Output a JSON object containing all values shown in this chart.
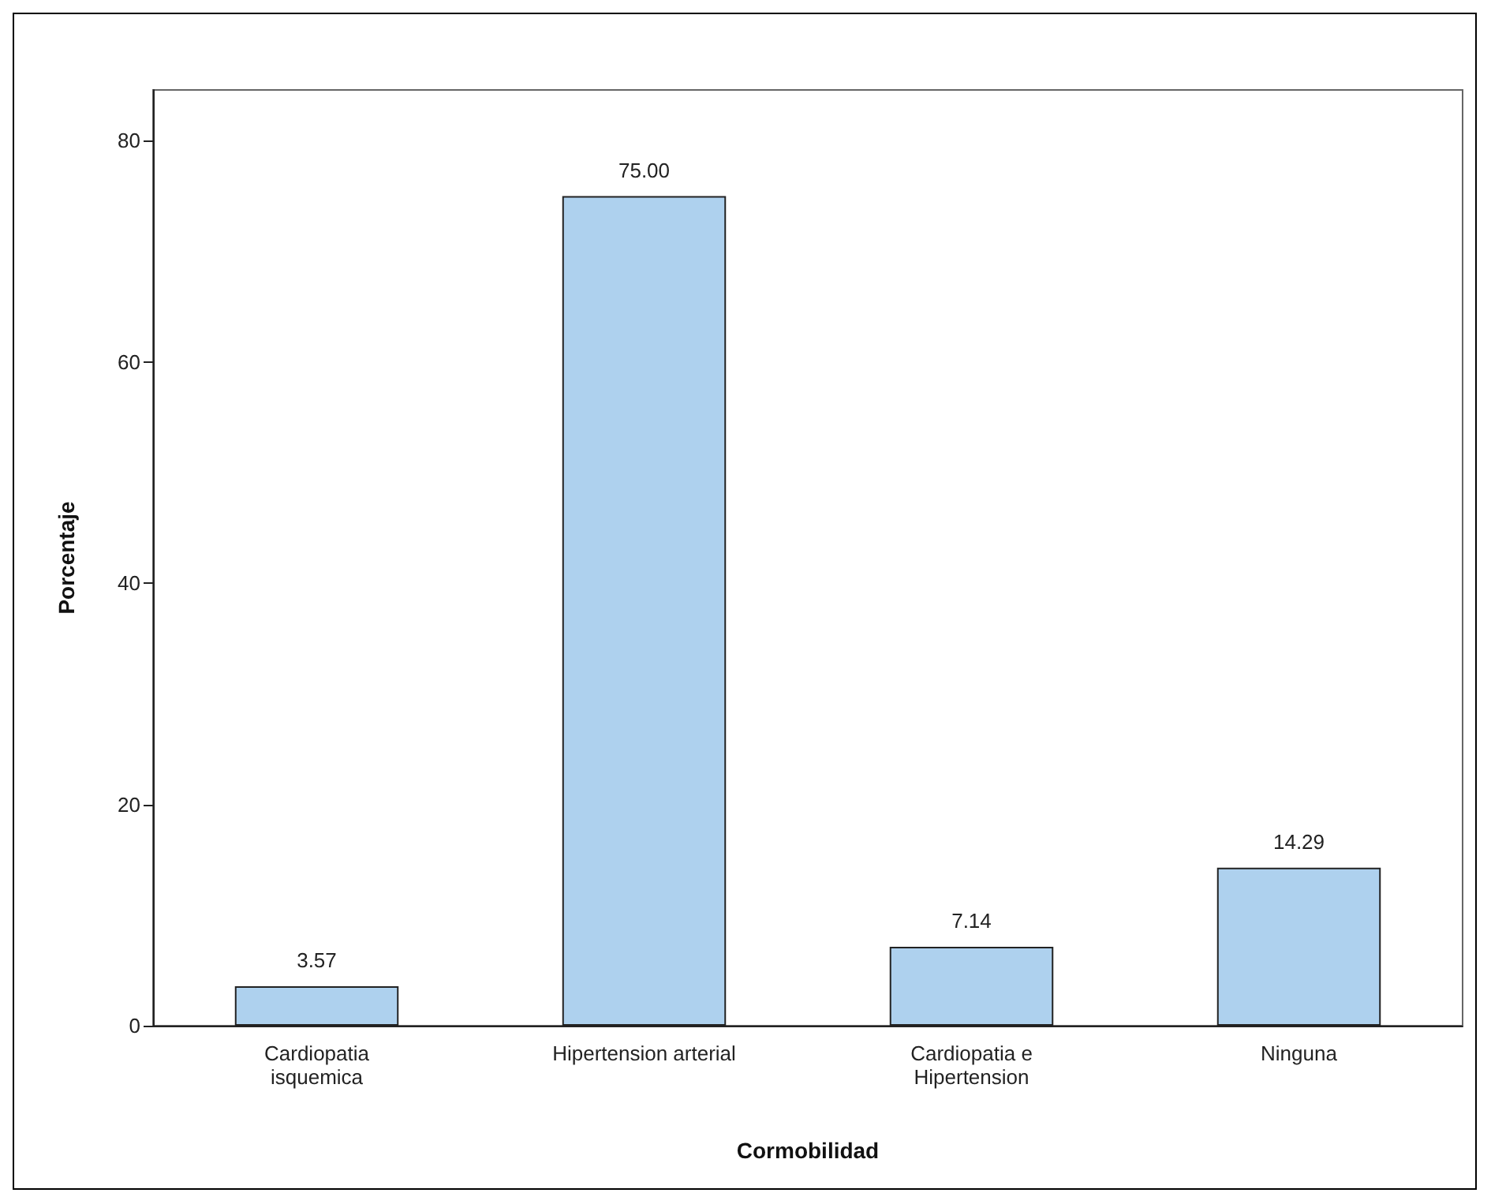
{
  "chart_data": {
    "type": "bar",
    "xlabel": "Cormobilidad",
    "ylabel": "Porcentaje",
    "categories": [
      "Cardiopatia\nisquemica",
      "Hipertension arterial",
      "Cardiopatia e\nHipertension",
      "Ninguna"
    ],
    "values": [
      3.57,
      75.0,
      7.14,
      14.29
    ],
    "color": "#aed1ee",
    "value_labels": [
      "3.57",
      "75.00",
      "7.14",
      "14.29"
    ],
    "ylim": [
      0,
      84.6
    ],
    "yticks": [
      0,
      20,
      40,
      60,
      80
    ],
    "grid": false
  }
}
